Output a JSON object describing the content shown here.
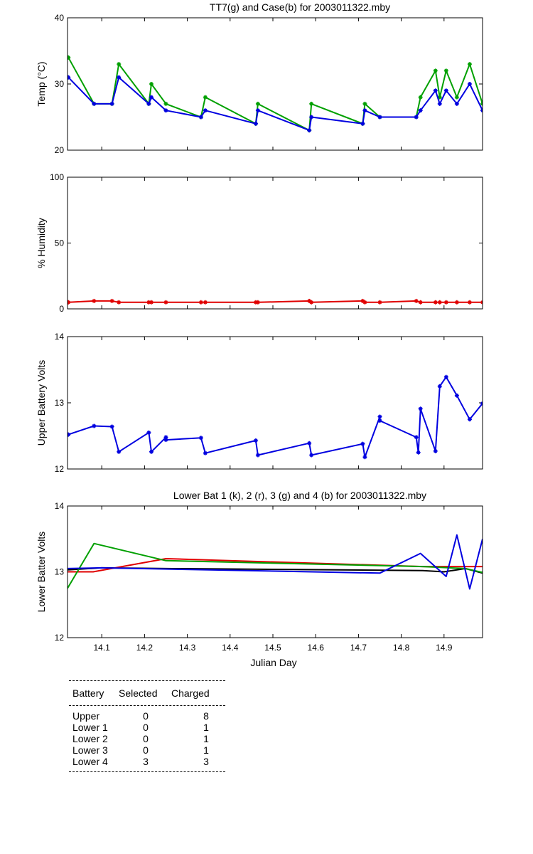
{
  "colors": {
    "green": "#00a000",
    "blue": "#0000e0",
    "red": "#e00000",
    "black": "#000000"
  },
  "xaxis": {
    "range": [
      14.02,
      14.99
    ],
    "ticks": [
      14.1,
      14.2,
      14.3,
      14.4,
      14.5,
      14.6,
      14.7,
      14.8,
      14.9
    ],
    "tick_labels": [
      "14.1",
      "14.2",
      "14.3",
      "14.4",
      "14.5",
      "14.6",
      "14.7",
      "14.8",
      "14.9"
    ],
    "label": "Julian Day"
  },
  "chart_data": [
    {
      "id": "temp",
      "type": "line",
      "title": "TT7(g) and Case(b) for 2003011322.mby",
      "ylabel": "Temp  (°C)",
      "ylim": [
        20,
        40
      ],
      "yticks": [
        20,
        30,
        40
      ],
      "ytick_labels": [
        "20",
        "30",
        "40"
      ],
      "markers": true,
      "series": [
        {
          "name": "TT7",
          "color": "green",
          "x": [
            14.022,
            14.082,
            14.124,
            14.14,
            14.21,
            14.216,
            14.25,
            14.332,
            14.342,
            14.46,
            14.465,
            14.585,
            14.59,
            14.71,
            14.715,
            14.75,
            14.835,
            14.845,
            14.88,
            14.89,
            14.905,
            14.93,
            14.96,
            14.99
          ],
          "y": [
            34,
            27,
            27,
            33,
            27,
            30,
            27,
            25,
            28,
            24,
            27,
            23,
            27,
            24,
            27,
            25,
            25,
            28,
            32,
            28,
            32,
            28,
            33,
            27
          ]
        },
        {
          "name": "Case",
          "color": "blue",
          "x": [
            14.022,
            14.082,
            14.124,
            14.14,
            14.21,
            14.216,
            14.25,
            14.332,
            14.342,
            14.46,
            14.465,
            14.585,
            14.59,
            14.71,
            14.715,
            14.75,
            14.835,
            14.845,
            14.88,
            14.89,
            14.905,
            14.93,
            14.96,
            14.99
          ],
          "y": [
            31,
            27,
            27,
            31,
            27,
            28,
            26,
            25,
            26,
            24,
            26,
            23,
            25,
            24,
            26,
            25,
            25,
            26,
            29,
            27,
            29,
            27,
            30,
            26
          ]
        }
      ]
    },
    {
      "id": "humidity",
      "type": "line",
      "title": "",
      "ylabel": "% Humidity",
      "ylim": [
        0,
        100
      ],
      "yticks": [
        0,
        50,
        100
      ],
      "ytick_labels": [
        "0",
        "50",
        "100"
      ],
      "markers": true,
      "series": [
        {
          "name": "Humidity",
          "color": "red",
          "x": [
            14.022,
            14.082,
            14.124,
            14.14,
            14.21,
            14.216,
            14.25,
            14.332,
            14.342,
            14.46,
            14.465,
            14.585,
            14.59,
            14.71,
            14.715,
            14.75,
            14.835,
            14.845,
            14.88,
            14.89,
            14.905,
            14.93,
            14.96,
            14.99
          ],
          "y": [
            5,
            6,
            6,
            5,
            5,
            5,
            5,
            5,
            5,
            5,
            5,
            6,
            5,
            6,
            5,
            5,
            6,
            5,
            5,
            5,
            5,
            5,
            5,
            5
          ]
        }
      ]
    },
    {
      "id": "upper",
      "type": "line",
      "title": "",
      "ylabel": "Upper Battery Volts",
      "ylim": [
        12,
        14
      ],
      "yticks": [
        12,
        13,
        14
      ],
      "ytick_labels": [
        "12",
        "13",
        "14"
      ],
      "markers": true,
      "series": [
        {
          "name": "Upper",
          "color": "blue",
          "x": [
            14.022,
            14.082,
            14.124,
            14.14,
            14.21,
            14.216,
            14.25,
            14.25,
            14.332,
            14.342,
            14.46,
            14.465,
            14.585,
            14.59,
            14.71,
            14.715,
            14.75,
            14.75,
            14.835,
            14.84,
            14.845,
            14.88,
            14.89,
            14.905,
            14.93,
            14.96,
            14.99
          ],
          "y": [
            12.52,
            12.65,
            12.64,
            12.26,
            12.55,
            12.26,
            12.48,
            12.44,
            12.47,
            12.24,
            12.43,
            12.21,
            12.39,
            12.21,
            12.38,
            12.18,
            12.79,
            12.73,
            12.48,
            12.25,
            12.91,
            12.27,
            13.25,
            13.39,
            13.11,
            12.75,
            12.99
          ]
        }
      ]
    },
    {
      "id": "lower",
      "type": "line",
      "title": "Lower Bat 1 (k), 2 (r), 3 (g) and 4 (b) for 2003011322.mby",
      "ylabel": "Lower Batter Volts",
      "ylim": [
        12,
        14
      ],
      "yticks": [
        12,
        13,
        14
      ],
      "ytick_labels": [
        "12",
        "13",
        "14"
      ],
      "markers": false,
      "series": [
        {
          "name": "Lower 1",
          "color": "black",
          "x": [
            14.02,
            14.1,
            14.25,
            14.85,
            14.9,
            14.95,
            14.99
          ],
          "y": [
            13.03,
            13.06,
            13.05,
            13.02,
            13.0,
            13.05,
            12.98
          ]
        },
        {
          "name": "Lower 2",
          "color": "red",
          "x": [
            14.02,
            14.08,
            14.25,
            14.85,
            14.95,
            14.99
          ],
          "y": [
            13.0,
            13.0,
            13.2,
            13.08,
            13.08,
            13.08
          ]
        },
        {
          "name": "Lower 3",
          "color": "green",
          "x": [
            14.02,
            14.082,
            14.25,
            14.85,
            14.95,
            14.99
          ],
          "y": [
            12.75,
            13.43,
            13.17,
            13.08,
            13.05,
            12.99
          ]
        },
        {
          "name": "Lower 4",
          "color": "blue",
          "x": [
            14.02,
            14.1,
            14.75,
            14.845,
            14.905,
            14.93,
            14.96,
            14.99
          ],
          "y": [
            13.05,
            13.06,
            12.98,
            13.28,
            12.93,
            13.56,
            12.74,
            13.5
          ]
        }
      ]
    }
  ],
  "table": {
    "headers": [
      "Battery",
      "Selected",
      "Charged"
    ],
    "rows": [
      {
        "battery": "Upper",
        "selected": "0",
        "charged": "8"
      },
      {
        "battery": "Lower 1",
        "selected": "0",
        "charged": "1"
      },
      {
        "battery": "Lower 2",
        "selected": "0",
        "charged": "1"
      },
      {
        "battery": "Lower 3",
        "selected": "0",
        "charged": "1"
      },
      {
        "battery": "Lower 4",
        "selected": "3",
        "charged": "3"
      }
    ]
  }
}
